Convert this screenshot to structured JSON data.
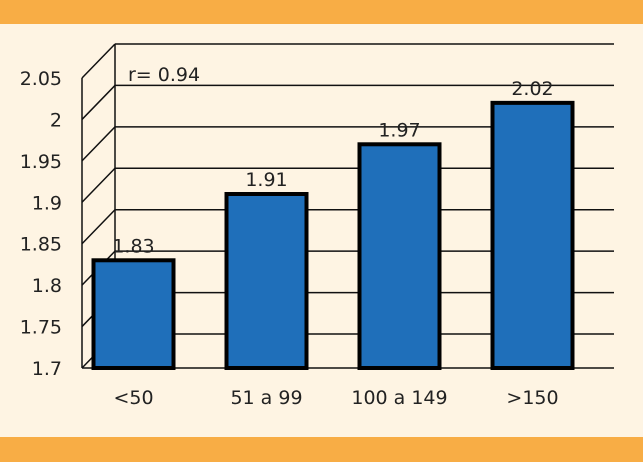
{
  "chart_data": {
    "type": "bar",
    "categories": [
      "<50",
      "51 a 99",
      "100 a 149",
      ">150"
    ],
    "values": [
      1.83,
      1.91,
      1.97,
      2.02
    ],
    "data_labels": [
      "1.83",
      "1.91",
      "1.97",
      "2.02"
    ],
    "y_ticks": [
      "1.7",
      "1.75",
      "1.8",
      "1.85",
      "1.9",
      "1.95",
      "2",
      "2.05"
    ],
    "ylim": [
      1.7,
      2.05
    ],
    "annotation": "r= 0.94",
    "title": "",
    "xlabel": "",
    "ylabel": "",
    "grid": true,
    "legend": "none",
    "bar_color": "#1f6fba",
    "band_color": "#f8ad45",
    "background_color": "#fef4e3"
  }
}
